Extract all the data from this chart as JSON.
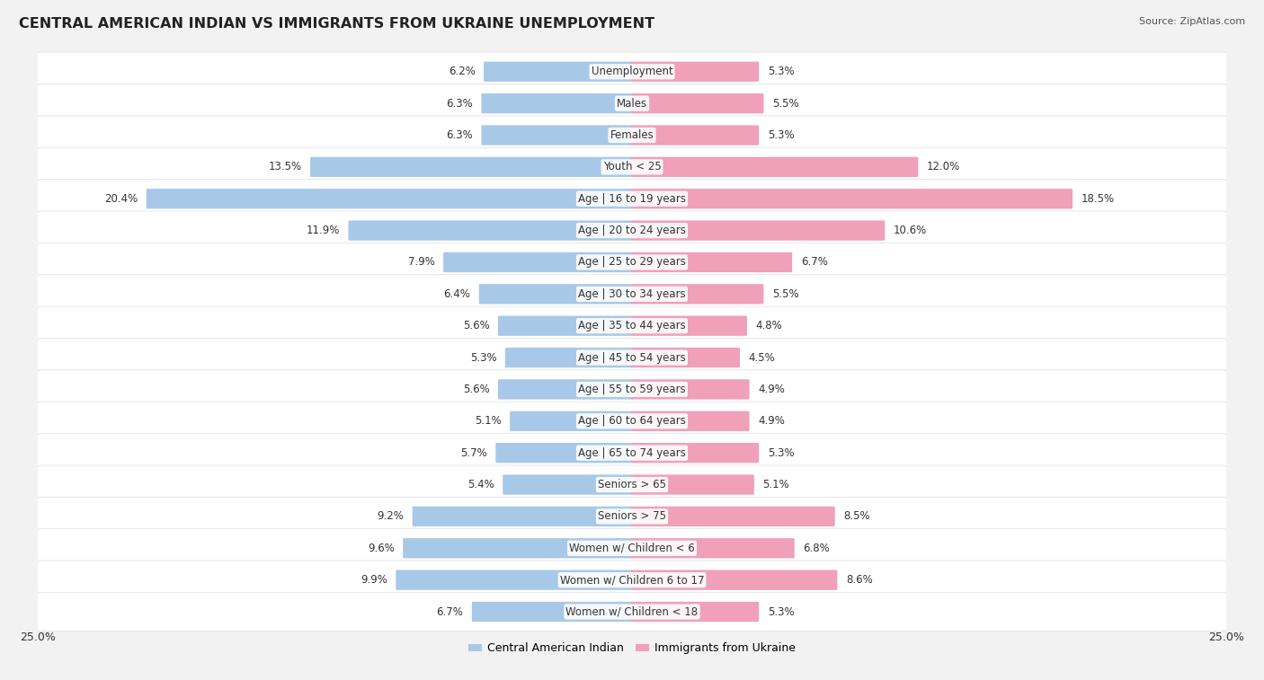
{
  "title": "CENTRAL AMERICAN INDIAN VS IMMIGRANTS FROM UKRAINE UNEMPLOYMENT",
  "source": "Source: ZipAtlas.com",
  "categories": [
    "Unemployment",
    "Males",
    "Females",
    "Youth < 25",
    "Age | 16 to 19 years",
    "Age | 20 to 24 years",
    "Age | 25 to 29 years",
    "Age | 30 to 34 years",
    "Age | 35 to 44 years",
    "Age | 45 to 54 years",
    "Age | 55 to 59 years",
    "Age | 60 to 64 years",
    "Age | 65 to 74 years",
    "Seniors > 65",
    "Seniors > 75",
    "Women w/ Children < 6",
    "Women w/ Children 6 to 17",
    "Women w/ Children < 18"
  ],
  "left_values": [
    6.2,
    6.3,
    6.3,
    13.5,
    20.4,
    11.9,
    7.9,
    6.4,
    5.6,
    5.3,
    5.6,
    5.1,
    5.7,
    5.4,
    9.2,
    9.6,
    9.9,
    6.7
  ],
  "right_values": [
    5.3,
    5.5,
    5.3,
    12.0,
    18.5,
    10.6,
    6.7,
    5.5,
    4.8,
    4.5,
    4.9,
    4.9,
    5.3,
    5.1,
    8.5,
    6.8,
    8.6,
    5.3
  ],
  "left_color": "#a8c8e8",
  "right_color": "#f0a0b8",
  "bar_height": 0.55,
  "background_color": "#f2f2f2",
  "row_bg_even": "#ffffff",
  "row_bg_odd": "#f7f7f7",
  "max_val": 25.0,
  "legend_left": "Central American Indian",
  "legend_right": "Immigrants from Ukraine",
  "title_fontsize": 11.5,
  "label_fontsize": 8.5,
  "value_fontsize": 8.5,
  "source_fontsize": 8
}
